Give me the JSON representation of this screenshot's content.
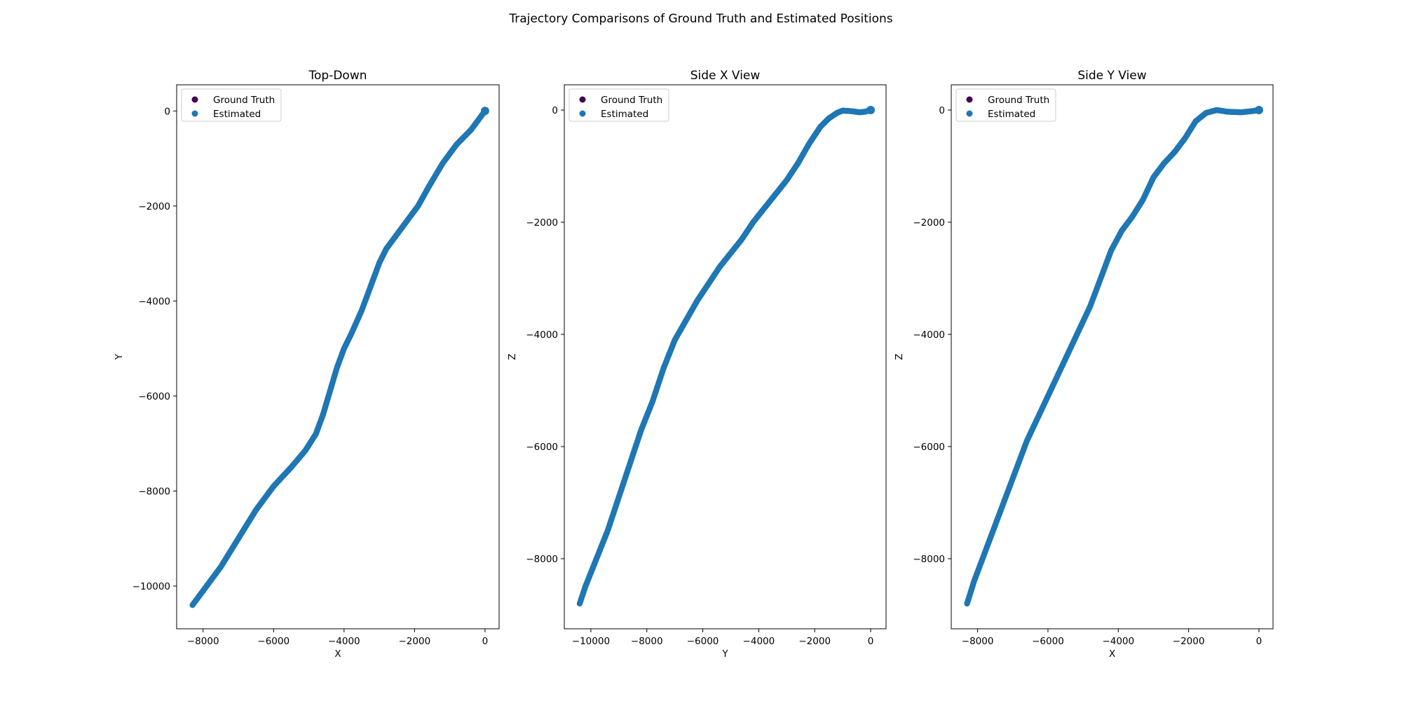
{
  "figure": {
    "title": "Trajectory Comparisons of Ground Truth and Estimated Positions"
  },
  "colors": {
    "ground_truth": "#440154",
    "estimated": "#1f77b4",
    "axes": "#000000",
    "legend_border": "#cccccc"
  },
  "legend": {
    "placement": "upper left",
    "entries": [
      "Ground Truth",
      "Estimated"
    ]
  },
  "chart_data": [
    {
      "type": "scatter",
      "title": "Top-Down",
      "xlabel": "X",
      "ylabel": "Y",
      "xlim": [
        -8750,
        400
      ],
      "ylim": [
        -10900,
        550
      ],
      "xticks": [
        -8000,
        -6000,
        -4000,
        -2000,
        0
      ],
      "yticks": [
        0,
        -2000,
        -4000,
        -6000,
        -8000,
        -10000
      ],
      "xtick_labels": [
        "−8000",
        "−6000",
        "−4000",
        "−2000",
        "0"
      ],
      "ytick_labels": [
        "0",
        "−2000",
        "−4000",
        "−6000",
        "−8000",
        "−10000"
      ],
      "grid": false,
      "series": [
        {
          "name": "Ground Truth",
          "x": [],
          "y": []
        },
        {
          "name": "Estimated",
          "x": [
            0,
            -150,
            -400,
            -800,
            -1200,
            -1600,
            -1900,
            -2200,
            -2500,
            -2800,
            -3000,
            -3200,
            -3500,
            -3800,
            -4000,
            -4200,
            -4400,
            -4600,
            -4800,
            -5100,
            -5500,
            -6000,
            -6500,
            -7000,
            -7500,
            -8000,
            -8300
          ],
          "y": [
            0,
            -150,
            -400,
            -700,
            -1100,
            -1600,
            -2000,
            -2300,
            -2600,
            -2900,
            -3200,
            -3600,
            -4200,
            -4700,
            -5000,
            -5400,
            -5900,
            -6400,
            -6800,
            -7150,
            -7500,
            -7900,
            -8400,
            -9000,
            -9600,
            -10100,
            -10400
          ]
        }
      ]
    },
    {
      "type": "scatter",
      "title": "Side X View",
      "xlabel": "Y",
      "ylabel": "Z",
      "xlim": [
        -10950,
        550
      ],
      "ylim": [
        -9250,
        450
      ],
      "xticks": [
        -10000,
        -8000,
        -6000,
        -4000,
        -2000,
        0
      ],
      "yticks": [
        0,
        -2000,
        -4000,
        -6000,
        -8000
      ],
      "xtick_labels": [
        "−10000",
        "−8000",
        "−6000",
        "−4000",
        "−2000",
        "0"
      ],
      "ytick_labels": [
        "0",
        "−2000",
        "−4000",
        "−6000",
        "−8000"
      ],
      "grid": false,
      "series": [
        {
          "name": "Ground Truth",
          "x": [],
          "y": []
        },
        {
          "name": "Estimated",
          "x": [
            0,
            -200,
            -400,
            -700,
            -1000,
            -1200,
            -1500,
            -1800,
            -2200,
            -2600,
            -3000,
            -3400,
            -3800,
            -4200,
            -4600,
            -5000,
            -5400,
            -5800,
            -6200,
            -6600,
            -7000,
            -7400,
            -7800,
            -8200,
            -8600,
            -9000,
            -9400,
            -9800,
            -10200,
            -10400
          ],
          "y": [
            0,
            -30,
            -40,
            -20,
            -10,
            -50,
            -150,
            -300,
            -600,
            -950,
            -1250,
            -1500,
            -1750,
            -2000,
            -2300,
            -2550,
            -2800,
            -3100,
            -3400,
            -3750,
            -4100,
            -4600,
            -5200,
            -5700,
            -6300,
            -6900,
            -7500,
            -8000,
            -8500,
            -8800
          ]
        }
      ]
    },
    {
      "type": "scatter",
      "title": "Side Y View",
      "xlabel": "X",
      "ylabel": "Z",
      "xlim": [
        -8750,
        400
      ],
      "ylim": [
        -9250,
        450
      ],
      "xticks": [
        -8000,
        -6000,
        -4000,
        -2000,
        0
      ],
      "yticks": [
        0,
        -2000,
        -4000,
        -6000,
        -8000
      ],
      "xtick_labels": [
        "−8000",
        "−6000",
        "−4000",
        "−2000",
        "0"
      ],
      "ytick_labels": [
        "0",
        "−2000",
        "−4000",
        "−6000",
        "−8000"
      ],
      "grid": false,
      "series": [
        {
          "name": "Ground Truth",
          "x": [],
          "y": []
        },
        {
          "name": "Estimated",
          "x": [
            0,
            -200,
            -500,
            -900,
            -1200,
            -1500,
            -1800,
            -2100,
            -2400,
            -2700,
            -3000,
            -3300,
            -3600,
            -3900,
            -4200,
            -4500,
            -4800,
            -5100,
            -5400,
            -5700,
            -6000,
            -6300,
            -6600,
            -6900,
            -7200,
            -7500,
            -7800,
            -8100,
            -8300
          ],
          "y": [
            0,
            -20,
            -40,
            -30,
            0,
            -50,
            -200,
            -500,
            -750,
            -950,
            -1200,
            -1600,
            -1900,
            -2150,
            -2500,
            -3000,
            -3500,
            -3900,
            -4300,
            -4700,
            -5100,
            -5500,
            -5900,
            -6400,
            -6900,
            -7400,
            -7900,
            -8400,
            -8800
          ]
        }
      ]
    }
  ]
}
